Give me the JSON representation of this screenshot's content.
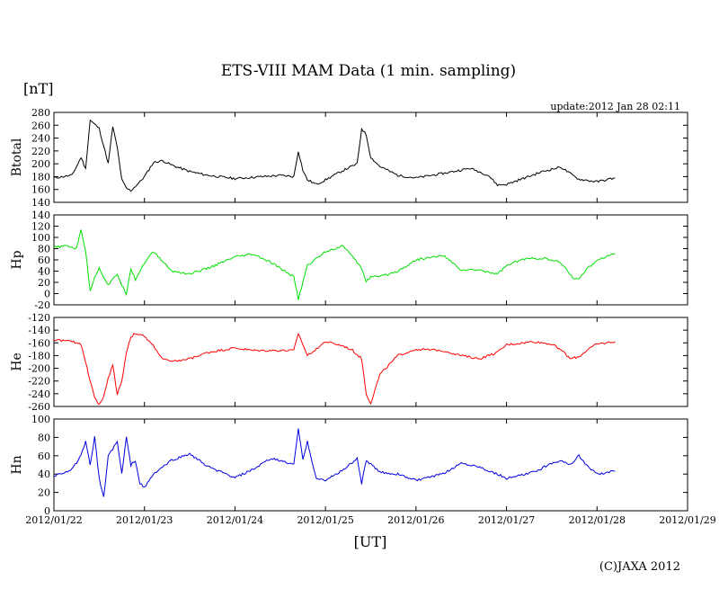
{
  "title": "ETS-VIII MAM Data (1 min. sampling)",
  "unit_label": "[nT]",
  "update_text": "update:2012 Jan 28 02:11",
  "copyright": "(C)JAXA 2012",
  "xlabel": "[UT]",
  "colors": {
    "axis": "#000000",
    "background": "#ffffff"
  },
  "chart_data": [
    {
      "type": "line",
      "ylabel": "Btotal",
      "color": "#000000",
      "ylim": [
        140,
        280
      ],
      "yticks": [
        "280",
        "260",
        "240",
        "220",
        "200",
        "180",
        "160",
        "140"
      ],
      "xlim": [
        0,
        7
      ],
      "x": [
        0,
        0.2,
        0.3,
        0.35,
        0.4,
        0.5,
        0.6,
        0.65,
        0.7,
        0.75,
        0.8,
        0.85,
        0.9,
        0.95,
        1.0,
        1.1,
        1.2,
        1.3,
        1.5,
        1.7,
        2.0,
        2.3,
        2.5,
        2.65,
        2.7,
        2.75,
        2.8,
        2.9,
        3.0,
        3.2,
        3.35,
        3.4,
        3.45,
        3.5,
        3.6,
        3.8,
        4.0,
        4.3,
        4.6,
        4.8,
        4.9,
        5.0,
        5.2,
        5.4,
        5.6,
        5.7,
        5.8,
        6.0,
        6.2
      ],
      "values": [
        178,
        182,
        210,
        192,
        268,
        255,
        200,
        258,
        225,
        175,
        162,
        158,
        165,
        172,
        180,
        202,
        205,
        198,
        188,
        182,
        177,
        180,
        182,
        180,
        220,
        190,
        175,
        168,
        175,
        190,
        200,
        255,
        245,
        210,
        196,
        182,
        178,
        185,
        193,
        182,
        167,
        168,
        178,
        188,
        195,
        185,
        176,
        172,
        178
      ]
    },
    {
      "type": "line",
      "ylabel": "Hp",
      "color": "#00e000",
      "ylim": [
        -20,
        140
      ],
      "yticks": [
        "140",
        "120",
        "100",
        "80",
        "60",
        "40",
        "20",
        "0",
        "-20"
      ],
      "xlim": [
        0,
        7
      ],
      "x": [
        0,
        0.15,
        0.25,
        0.3,
        0.35,
        0.4,
        0.45,
        0.5,
        0.6,
        0.7,
        0.75,
        0.8,
        0.85,
        0.9,
        1.0,
        1.1,
        1.3,
        1.5,
        1.7,
        2.0,
        2.2,
        2.4,
        2.6,
        2.65,
        2.7,
        2.8,
        3.0,
        3.2,
        3.4,
        3.45,
        3.5,
        3.6,
        3.8,
        4.0,
        4.3,
        4.5,
        4.7,
        4.9,
        5.0,
        5.2,
        5.4,
        5.6,
        5.75,
        5.8,
        5.9,
        6.0,
        6.2
      ],
      "values": [
        82,
        85,
        80,
        115,
        75,
        5,
        30,
        45,
        15,
        35,
        15,
        0,
        45,
        25,
        55,
        75,
        40,
        35,
        45,
        65,
        70,
        55,
        35,
        30,
        -10,
        50,
        75,
        85,
        45,
        22,
        30,
        30,
        40,
        60,
        68,
        42,
        42,
        35,
        50,
        62,
        63,
        55,
        25,
        28,
        45,
        60,
        72
      ]
    },
    {
      "type": "line",
      "ylabel": "He",
      "color": "#ff0000",
      "ylim": [
        -260,
        -120
      ],
      "yticks": [
        "-120",
        "-140",
        "-160",
        "-180",
        "-200",
        "-220",
        "-240",
        "-260"
      ],
      "xlim": [
        0,
        7
      ],
      "x": [
        0,
        0.2,
        0.3,
        0.35,
        0.4,
        0.45,
        0.5,
        0.55,
        0.6,
        0.65,
        0.7,
        0.75,
        0.8,
        0.85,
        0.9,
        1.0,
        1.1,
        1.2,
        1.3,
        1.5,
        1.7,
        2.0,
        2.2,
        2.5,
        2.65,
        2.7,
        2.8,
        3.0,
        3.2,
        3.3,
        3.4,
        3.45,
        3.5,
        3.6,
        3.8,
        4.0,
        4.3,
        4.5,
        4.7,
        4.9,
        5.0,
        5.3,
        5.5,
        5.6,
        5.7,
        5.8,
        5.9,
        6.0,
        6.2
      ],
      "values": [
        -155,
        -158,
        -162,
        -190,
        -220,
        -245,
        -258,
        -245,
        -215,
        -195,
        -240,
        -220,
        -175,
        -150,
        -145,
        -150,
        -165,
        -185,
        -190,
        -185,
        -175,
        -168,
        -172,
        -172,
        -172,
        -145,
        -180,
        -158,
        -165,
        -172,
        -185,
        -240,
        -255,
        -210,
        -180,
        -170,
        -172,
        -180,
        -185,
        -175,
        -163,
        -158,
        -162,
        -170,
        -185,
        -182,
        -170,
        -162,
        -158
      ]
    },
    {
      "type": "line",
      "ylabel": "Hn",
      "color": "#0000e0",
      "ylim": [
        0,
        100
      ],
      "yticks": [
        "100",
        "80",
        "60",
        "40",
        "20",
        "0"
      ],
      "xlim": [
        0,
        7
      ],
      "x": [
        0,
        0.2,
        0.3,
        0.35,
        0.4,
        0.45,
        0.5,
        0.55,
        0.6,
        0.7,
        0.75,
        0.8,
        0.85,
        0.9,
        0.95,
        1.0,
        1.1,
        1.3,
        1.5,
        1.7,
        2.0,
        2.2,
        2.4,
        2.6,
        2.65,
        2.7,
        2.75,
        2.8,
        2.9,
        3.0,
        3.2,
        3.35,
        3.4,
        3.45,
        3.6,
        3.8,
        4.0,
        4.3,
        4.5,
        4.7,
        4.9,
        5.0,
        5.3,
        5.5,
        5.6,
        5.7,
        5.8,
        5.9,
        6.0,
        6.2
      ],
      "values": [
        38,
        45,
        60,
        75,
        50,
        80,
        35,
        15,
        60,
        75,
        40,
        80,
        50,
        55,
        30,
        25,
        40,
        55,
        62,
        48,
        36,
        45,
        57,
        52,
        50,
        90,
        55,
        75,
        35,
        33,
        45,
        57,
        30,
        55,
        42,
        40,
        33,
        40,
        52,
        48,
        40,
        35,
        42,
        52,
        55,
        50,
        60,
        48,
        40,
        43
      ]
    }
  ],
  "x_axis": {
    "tick_labels": [
      "2012/01/22",
      "2012/01/23",
      "2012/01/24",
      "2012/01/25",
      "2012/01/26",
      "2012/01/27",
      "2012/01/28",
      "2012/01/29"
    ],
    "range": [
      0,
      7
    ]
  }
}
